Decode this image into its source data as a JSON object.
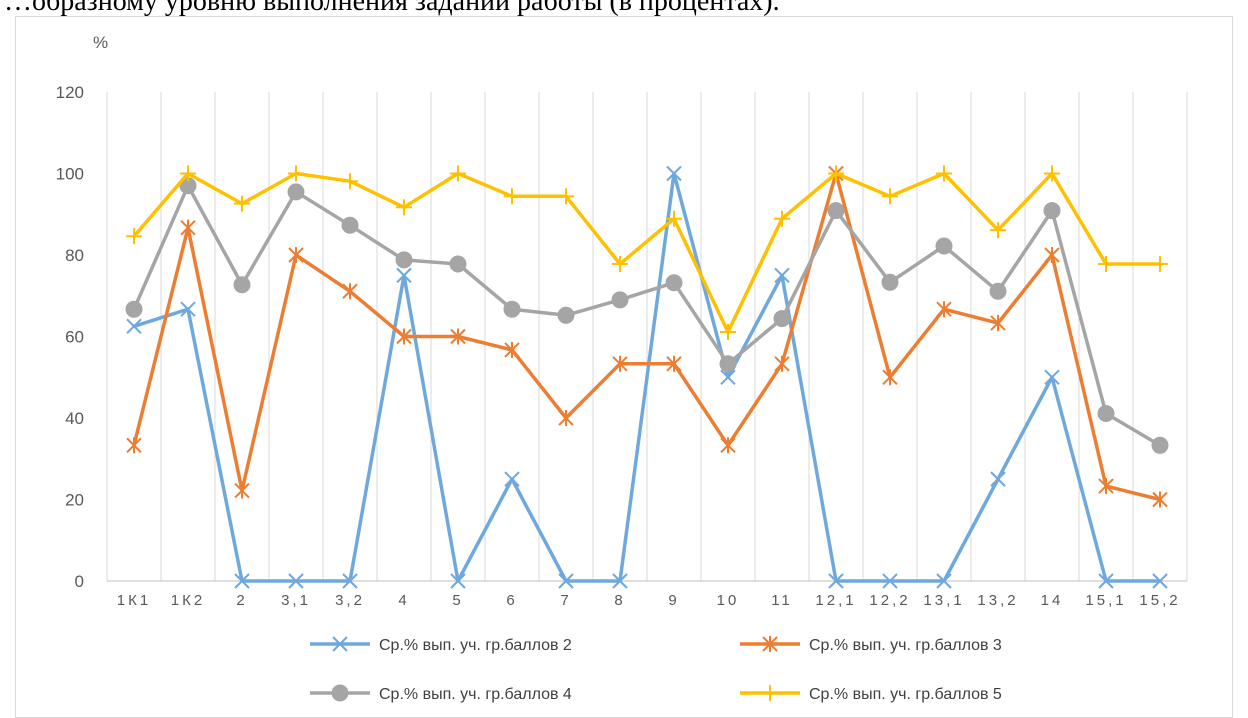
{
  "document": {
    "caption_fragment": "…образному уровню выполнения заданий работы (в процентах)."
  },
  "chart_data": {
    "type": "line",
    "ylabel": "%",
    "ylim": [
      0,
      120
    ],
    "yticks": [
      0,
      20,
      40,
      60,
      80,
      100,
      120
    ],
    "grid": "vertical",
    "legend_position": "bottom",
    "categories": [
      "1К1",
      "1К2",
      "2",
      "3,1",
      "3,2",
      "4",
      "5",
      "6",
      "7",
      "8",
      "9",
      "10",
      "11",
      "12,1",
      "12,2",
      "13,1",
      "13,2",
      "14",
      "15,1",
      "15,2"
    ],
    "series": [
      {
        "name": "Ср.% вып. уч. гр.баллов 2",
        "color": "#6fa8dc",
        "marker": "x",
        "values": [
          62.5,
          66.7,
          0,
          0,
          0,
          75,
          0,
          25,
          0,
          0,
          100,
          50,
          75,
          0,
          0,
          0,
          25,
          50,
          0,
          0
        ]
      },
      {
        "name": "Ср.% вып. уч. гр.баллов 3",
        "color": "#ed7d31",
        "marker": "star",
        "values": [
          33.3,
          86.7,
          22.2,
          80,
          71.1,
          60,
          60,
          56.7,
          40,
          53.3,
          53.3,
          33.3,
          53.3,
          100,
          50,
          66.7,
          63.3,
          80,
          23.3,
          20
        ]
      },
      {
        "name": "Ср.% вып. уч. гр.баллов 4",
        "color": "#a5a5a5",
        "marker": "circle",
        "values": [
          66.7,
          97.0,
          72.7,
          95.5,
          87.3,
          78.8,
          77.8,
          66.7,
          65.2,
          69.0,
          73.2,
          53.3,
          64.4,
          90.9,
          73.3,
          82.2,
          71.1,
          90.9,
          41.1,
          33.3
        ]
      },
      {
        "name": "Ср.% вып. уч. гр.баллов 5",
        "color": "#ffc000",
        "marker": "plus",
        "values": [
          84.6,
          100,
          92.6,
          100,
          98.1,
          91.7,
          100,
          94.4,
          94.4,
          77.8,
          88.9,
          61.1,
          88.9,
          100,
          94.4,
          100,
          86.1,
          100,
          77.8,
          77.8
        ]
      }
    ]
  }
}
